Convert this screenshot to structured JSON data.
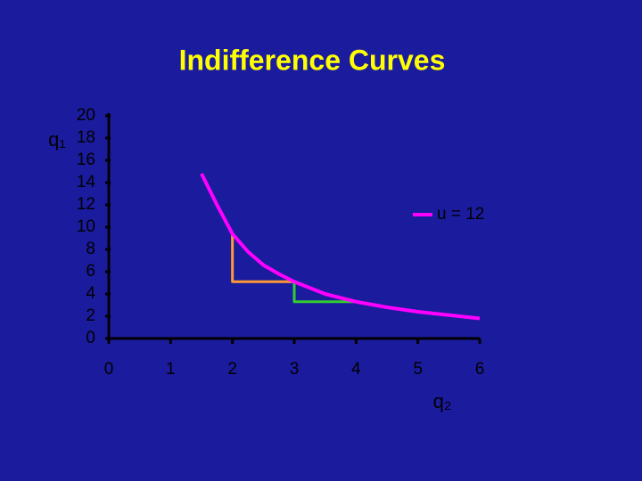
{
  "chart_data": {
    "type": "line",
    "title": "Indifference Curves",
    "xlabel": "q₂",
    "ylabel": "q₁",
    "xlim": [
      0,
      6
    ],
    "xticks": [
      0,
      1,
      2,
      3,
      4,
      5,
      6
    ],
    "ylim": [
      0,
      20
    ],
    "yticks": [
      0,
      2,
      4,
      6,
      8,
      10,
      12,
      14,
      16,
      18,
      20
    ],
    "legend": "right",
    "series": [
      {
        "name": "u = 12",
        "color": "#ff00ff",
        "x": [
          1.5,
          1.75,
          2,
          2.25,
          2.5,
          2.75,
          3,
          3.5,
          4,
          4.5,
          5,
          5.5,
          6
        ],
        "values": [
          14.8,
          12,
          9.4,
          7.8,
          6.6,
          5.8,
          5.1,
          4.0,
          3.3,
          2.8,
          2.4,
          2.1,
          1.8
        ]
      },
      {
        "color": "#ff9933",
        "x": [
          2,
          2,
          3
        ],
        "values": [
          9.4,
          5.1,
          5.1
        ]
      },
      {
        "color": "#33cc33",
        "x": [
          3,
          3,
          4
        ],
        "values": [
          5.1,
          3.3,
          3.3
        ]
      }
    ]
  }
}
